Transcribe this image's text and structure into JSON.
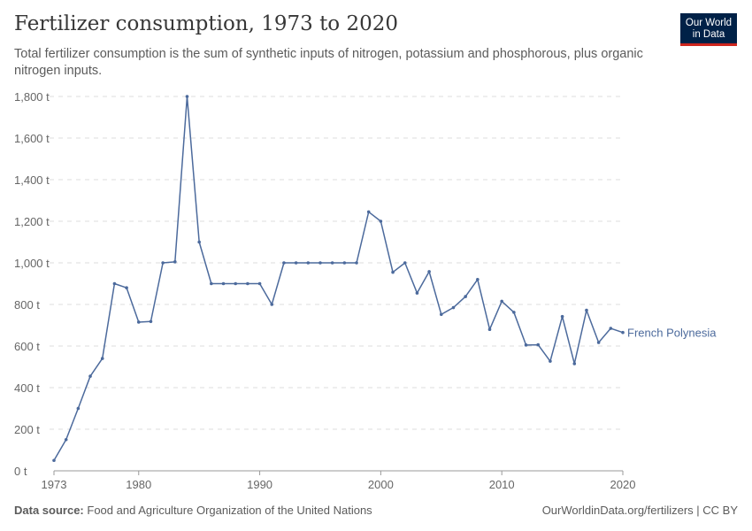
{
  "title": "Fertilizer consumption, 1973 to 2020",
  "subtitle": "Total fertilizer consumption is the sum of synthetic inputs of nitrogen, potassium and phosphorous, plus organic nitrogen inputs.",
  "logo": "Our World in Data",
  "footer": {
    "source_label": "Data source:",
    "source": "Food and Agriculture Organization of the United Nations",
    "link": "OurWorldinData.org/fertilizers | CC BY"
  },
  "chart_data": {
    "type": "line",
    "title": "Fertilizer consumption, 1973 to 2020",
    "ylim": [
      0,
      1800
    ],
    "xlim": [
      1973,
      2020
    ],
    "y_ticks": [
      "0 t",
      "200 t",
      "400 t",
      "600 t",
      "800 t",
      "1,000 t",
      "1,200 t",
      "1,400 t",
      "1,600 t",
      "1,800 t"
    ],
    "x_ticks": [
      "1973",
      "1980",
      "1990",
      "2000",
      "2010",
      "2020"
    ],
    "grid": true,
    "color": "#4c6a9c",
    "series": [
      {
        "name": "French Polynesia",
        "x": [
          1973,
          1974,
          1975,
          1976,
          1977,
          1978,
          1979,
          1980,
          1981,
          1982,
          1983,
          1984,
          1985,
          1986,
          1987,
          1988,
          1989,
          1990,
          1991,
          1992,
          1993,
          1994,
          1995,
          1996,
          1997,
          1998,
          1999,
          2000,
          2001,
          2002,
          2003,
          2004,
          2005,
          2006,
          2007,
          2008,
          2009,
          2010,
          2011,
          2012,
          2013,
          2014,
          2015,
          2016,
          2017,
          2018,
          2019,
          2020
        ],
        "y": [
          50,
          150,
          300,
          455,
          540,
          900,
          880,
          715,
          718,
          1000,
          1005,
          1800,
          1100,
          900,
          900,
          900,
          900,
          900,
          800,
          1000,
          1000,
          1000,
          1000,
          1000,
          1000,
          1000,
          1245,
          1200,
          955,
          1000,
          855,
          958,
          752,
          785,
          838,
          920,
          680,
          815,
          762,
          605,
          606,
          527,
          742,
          515,
          772,
          617,
          685,
          665
        ]
      }
    ]
  }
}
